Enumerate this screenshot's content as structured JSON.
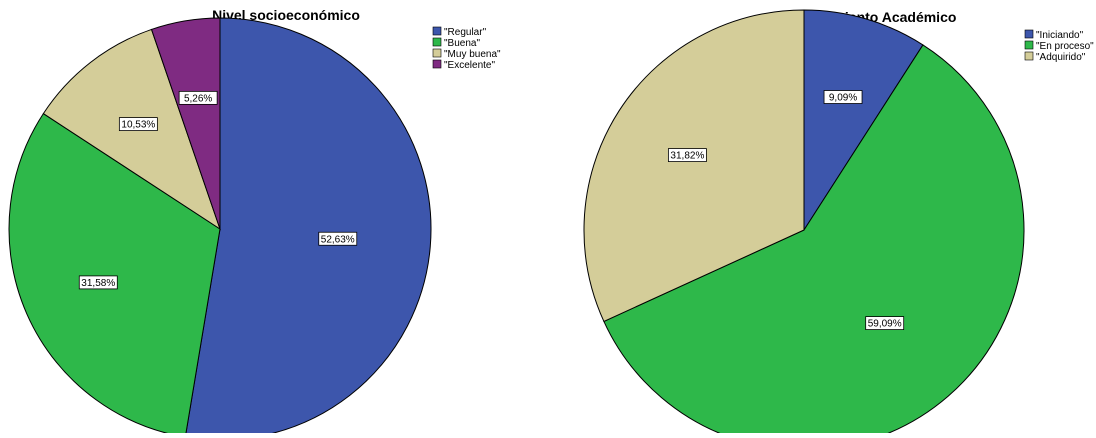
{
  "chart_data": [
    {
      "type": "pie",
      "title": "Nivel socioeconómico",
      "series": [
        {
          "values": [
            52.63,
            31.58,
            10.53,
            5.26
          ]
        }
      ],
      "categories": [
        "\"Regular\"",
        "\"Buena\"",
        "\"Muy buena\"",
        "\"Excelente\""
      ],
      "labels": [
        "52,63%",
        "31,58%",
        "10,53%",
        "5,26%"
      ],
      "colors": [
        "#3D56AC",
        "#2EB84A",
        "#D4CD99",
        "#7F2B82"
      ],
      "legend": "top-right"
    },
    {
      "type": "pie",
      "title": "Rendimiento Académico",
      "series": [
        {
          "values": [
            9.09,
            59.09,
            31.82
          ]
        }
      ],
      "categories": [
        "\"Iniciando\"",
        "\"En proceso\"",
        "\"Adquirido\""
      ],
      "labels": [
        "9,09%",
        "59,09%",
        "31,82%"
      ],
      "colors": [
        "#3D56AC",
        "#2EB84A",
        "#D4CD99"
      ],
      "legend": "top-right"
    }
  ]
}
